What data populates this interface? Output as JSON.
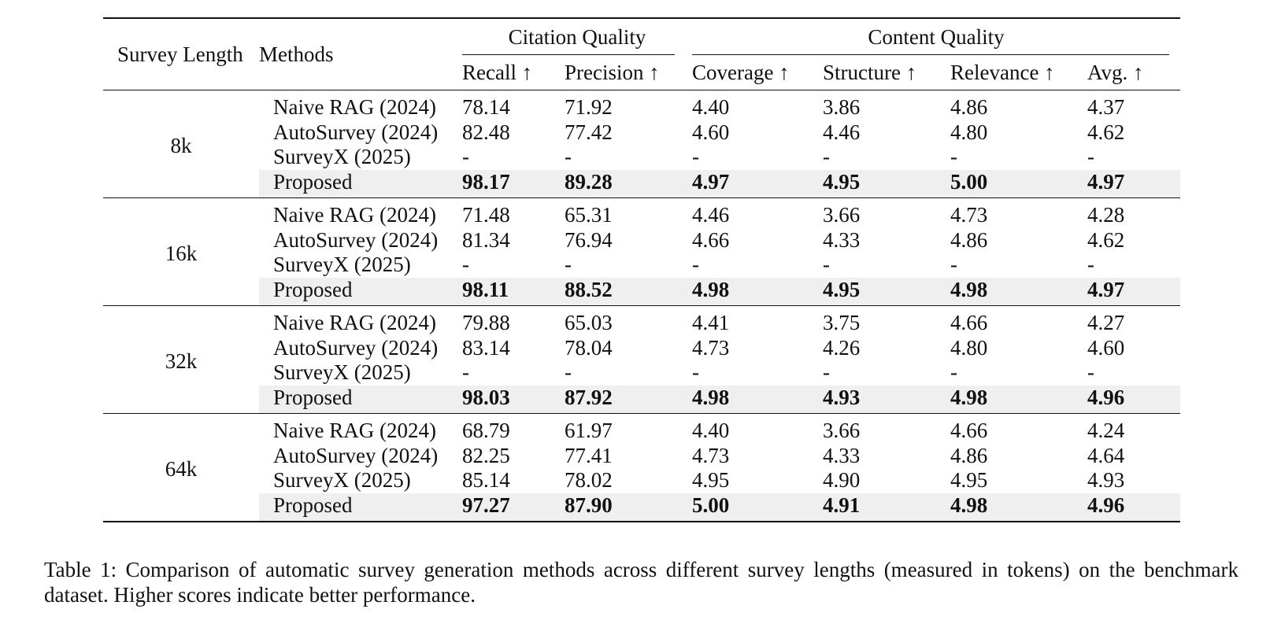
{
  "table": {
    "headers": {
      "survey_length": "Survey Length",
      "methods": "Methods",
      "citation_quality": "Citation Quality",
      "content_quality": "Content Quality",
      "recall": "Recall ↑",
      "precision": "Precision ↑",
      "coverage": "Coverage ↑",
      "structure": "Structure ↑",
      "relevance": "Relevance ↑",
      "avg": "Avg. ↑"
    },
    "groups": [
      {
        "length": "8k",
        "rows": [
          {
            "method": "Naive RAG (2024)",
            "recall": "78.14",
            "precision": "71.92",
            "coverage": "4.40",
            "structure": "3.86",
            "relevance": "4.86",
            "avg": "4.37"
          },
          {
            "method": "AutoSurvey (2024)",
            "recall": "82.48",
            "precision": "77.42",
            "coverage": "4.60",
            "structure": "4.46",
            "relevance": "4.80",
            "avg": "4.62"
          },
          {
            "method": "SurveyX (2025)",
            "recall": "-",
            "precision": "-",
            "coverage": "-",
            "structure": "-",
            "relevance": "-",
            "avg": "-"
          },
          {
            "method": "Proposed",
            "recall": "98.17",
            "precision": "89.28",
            "coverage": "4.97",
            "structure": "4.95",
            "relevance": "5.00",
            "avg": "4.97"
          }
        ]
      },
      {
        "length": "16k",
        "rows": [
          {
            "method": "Naive RAG (2024)",
            "recall": "71.48",
            "precision": "65.31",
            "coverage": "4.46",
            "structure": "3.66",
            "relevance": "4.73",
            "avg": "4.28"
          },
          {
            "method": "AutoSurvey (2024)",
            "recall": "81.34",
            "precision": "76.94",
            "coverage": "4.66",
            "structure": "4.33",
            "relevance": "4.86",
            "avg": "4.62"
          },
          {
            "method": "SurveyX (2025)",
            "recall": "-",
            "precision": "-",
            "coverage": "-",
            "structure": "-",
            "relevance": "-",
            "avg": "-"
          },
          {
            "method": "Proposed",
            "recall": "98.11",
            "precision": "88.52",
            "coverage": "4.98",
            "structure": "4.95",
            "relevance": "4.98",
            "avg": "4.97"
          }
        ]
      },
      {
        "length": "32k",
        "rows": [
          {
            "method": "Naive RAG (2024)",
            "recall": "79.88",
            "precision": "65.03",
            "coverage": "4.41",
            "structure": "3.75",
            "relevance": "4.66",
            "avg": "4.27"
          },
          {
            "method": "AutoSurvey (2024)",
            "recall": "83.14",
            "precision": "78.04",
            "coverage": "4.73",
            "structure": "4.26",
            "relevance": "4.80",
            "avg": "4.60"
          },
          {
            "method": "SurveyX (2025)",
            "recall": "-",
            "precision": "-",
            "coverage": "-",
            "structure": "-",
            "relevance": "-",
            "avg": "-"
          },
          {
            "method": "Proposed",
            "recall": "98.03",
            "precision": "87.92",
            "coverage": "4.98",
            "structure": "4.93",
            "relevance": "4.98",
            "avg": "4.96"
          }
        ]
      },
      {
        "length": "64k",
        "rows": [
          {
            "method": "Naive RAG (2024)",
            "recall": "68.79",
            "precision": "61.97",
            "coverage": "4.40",
            "structure": "3.66",
            "relevance": "4.66",
            "avg": "4.24"
          },
          {
            "method": "AutoSurvey (2024)",
            "recall": "82.25",
            "precision": "77.41",
            "coverage": "4.73",
            "structure": "4.33",
            "relevance": "4.86",
            "avg": "4.64"
          },
          {
            "method": "SurveyX (2025)",
            "recall": "85.14",
            "precision": "78.02",
            "coverage": "4.95",
            "structure": "4.90",
            "relevance": "4.95",
            "avg": "4.93"
          },
          {
            "method": "Proposed",
            "recall": "97.27",
            "precision": "87.90",
            "coverage": "5.00",
            "structure": "4.91",
            "relevance": "4.98",
            "avg": "4.96"
          }
        ]
      }
    ],
    "highlight_color": "#efefef"
  },
  "caption": "Table 1: Comparison of automatic survey generation methods across different survey lengths (measured in tokens) on the benchmark dataset. Higher scores indicate better performance."
}
